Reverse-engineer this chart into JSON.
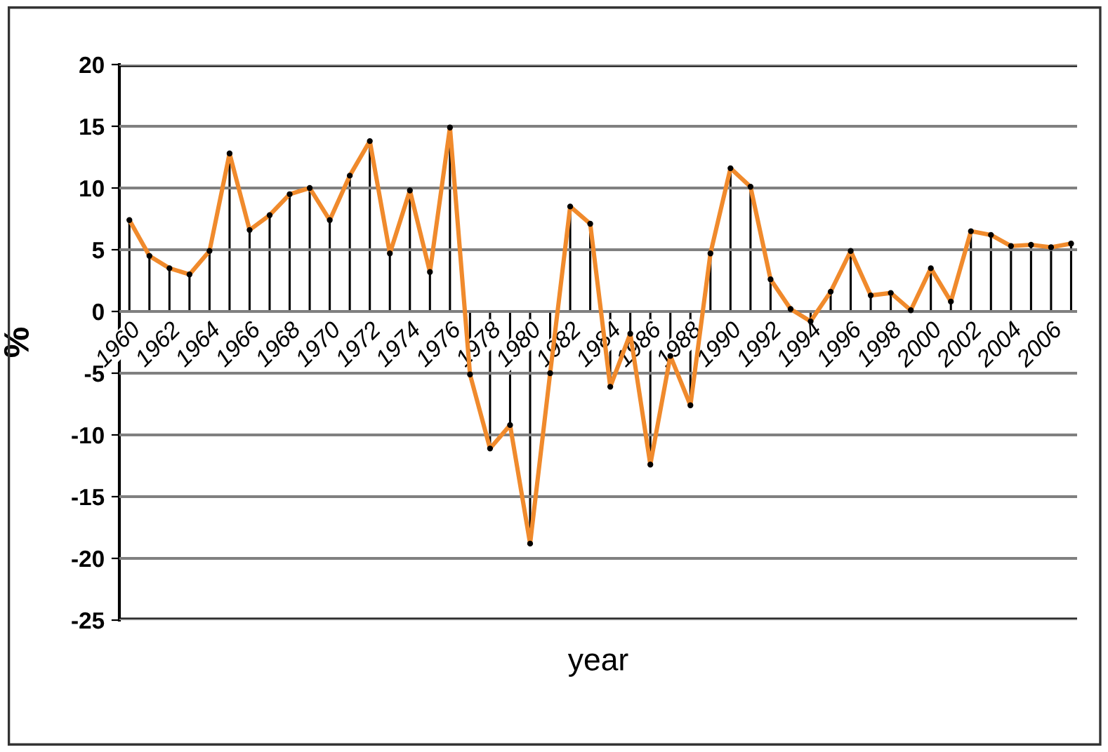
{
  "chart_data": {
    "type": "line",
    "xlabel": "year",
    "ylabel": "%",
    "x": [
      1960,
      1961,
      1962,
      1963,
      1964,
      1965,
      1966,
      1967,
      1968,
      1969,
      1970,
      1971,
      1972,
      1973,
      1974,
      1975,
      1976,
      1977,
      1978,
      1979,
      1980,
      1981,
      1982,
      1983,
      1984,
      1985,
      1986,
      1987,
      1988,
      1989,
      1990,
      1991,
      1992,
      1993,
      1994,
      1995,
      1996,
      1997,
      1998,
      1999,
      2000,
      2001,
      2002,
      2003,
      2004,
      2005,
      2006,
      2007
    ],
    "series": [
      {
        "type": "lollipop",
        "color": "#000000",
        "marker": "circle",
        "values": [
          7.4,
          4.5,
          3.5,
          3.0,
          4.9,
          12.8,
          6.6,
          7.8,
          9.5,
          10.0,
          7.4,
          11.0,
          13.8,
          4.7,
          9.8,
          3.2,
          14.9,
          -5.1,
          -11.1,
          -9.2,
          -18.8,
          -5.0,
          8.5,
          7.1,
          -6.1,
          -1.8,
          -12.4,
          -3.6,
          -7.6,
          4.7,
          11.6,
          10.1,
          2.6,
          0.2,
          -0.8,
          1.6,
          4.9,
          1.3,
          1.5,
          0.1,
          3.5,
          0.8,
          6.5,
          6.2,
          5.3,
          5.4,
          5.2,
          5.5
        ]
      },
      {
        "color": "#f08a2c",
        "values": [
          7.4,
          4.5,
          3.5,
          3.0,
          4.9,
          12.8,
          6.6,
          7.8,
          9.5,
          10.0,
          7.4,
          11.0,
          13.8,
          4.7,
          9.8,
          3.2,
          14.9,
          -5.1,
          -11.1,
          -9.2,
          -18.8,
          -5.0,
          8.5,
          7.1,
          -6.1,
          -1.8,
          -12.4,
          -3.6,
          -7.6,
          4.7,
          11.6,
          10.1,
          2.6,
          0.2,
          -0.8,
          1.6,
          4.9,
          1.3,
          1.5,
          0.1,
          3.5,
          0.8,
          6.5,
          6.2,
          5.3,
          5.4,
          5.2,
          5.5
        ]
      }
    ],
    "xlim": [
      1959.5,
      2007.3
    ],
    "xticks": [
      1960,
      1962,
      1964,
      1966,
      1968,
      1970,
      1972,
      1974,
      1976,
      1978,
      1980,
      1982,
      1984,
      1986,
      1988,
      1990,
      1992,
      1994,
      1996,
      1998,
      2000,
      2002,
      2004,
      2006
    ],
    "ylim": [
      -25,
      20
    ],
    "yticks": [
      -25,
      -20,
      -15,
      -10,
      -5,
      0,
      5,
      10,
      15,
      20
    ],
    "grid": "y",
    "legend": false
  }
}
